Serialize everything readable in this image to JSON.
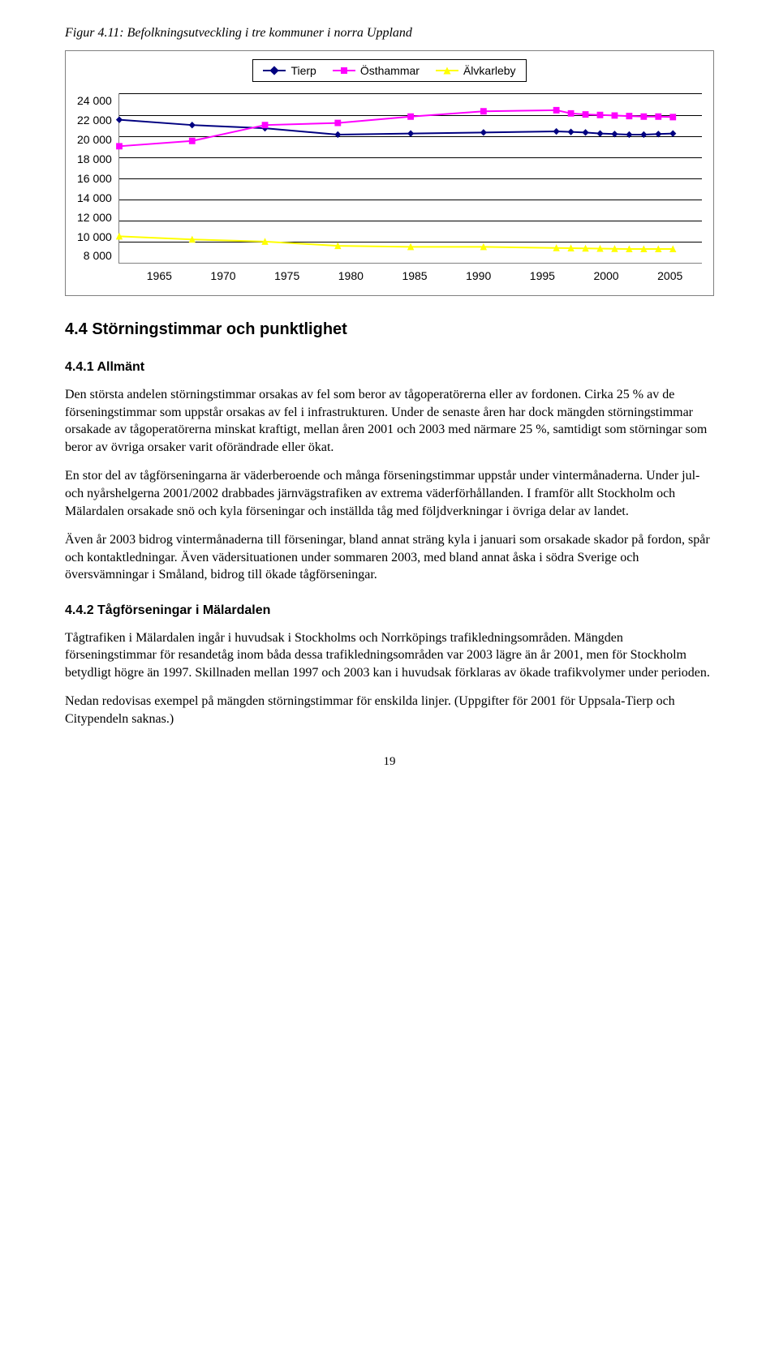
{
  "figure": {
    "caption": "Figur 4.11: Befolkningsutveckling i tre kommuner i norra Uppland",
    "chart": {
      "type": "line",
      "aspect_w": 740,
      "aspect_h": 210,
      "ylim": [
        8000,
        24000
      ],
      "ytick_step": 2000,
      "xticks": [
        1965,
        1970,
        1975,
        1980,
        1985,
        1990,
        1995,
        2000,
        2005
      ],
      "y_labels": [
        "24 000",
        "22 000",
        "20 000",
        "18 000",
        "16 000",
        "14 000",
        "12 000",
        "10 000",
        "8 000"
      ],
      "x_labels": [
        "1965",
        "1970",
        "1975",
        "1980",
        "1985",
        "1990",
        "1995",
        "2000",
        "2005"
      ],
      "grid_color": "#000000",
      "border_color": "#808080",
      "background_color": "#ffffff",
      "axis_font_family": "Arial",
      "axis_fontsize": 14,
      "legend_fontsize": 14,
      "marker_size": 7,
      "line_width": 2,
      "series": [
        {
          "name": "Tierp",
          "color": "#000080",
          "marker": "diamond",
          "points": [
            {
              "x": 1965,
              "y": 21500
            },
            {
              "x": 1970,
              "y": 21000
            },
            {
              "x": 1975,
              "y": 20700
            },
            {
              "x": 1980,
              "y": 20100
            },
            {
              "x": 1985,
              "y": 20200
            },
            {
              "x": 1990,
              "y": 20300
            },
            {
              "x": 1995,
              "y": 20400
            },
            {
              "x": 1996,
              "y": 20350
            },
            {
              "x": 1997,
              "y": 20300
            },
            {
              "x": 1998,
              "y": 20200
            },
            {
              "x": 1999,
              "y": 20150
            },
            {
              "x": 2000,
              "y": 20100
            },
            {
              "x": 2001,
              "y": 20100
            },
            {
              "x": 2002,
              "y": 20150
            },
            {
              "x": 2003,
              "y": 20200
            }
          ]
        },
        {
          "name": "Östhammar",
          "color": "#ff00ff",
          "marker": "square",
          "points": [
            {
              "x": 1965,
              "y": 19000
            },
            {
              "x": 1970,
              "y": 19500
            },
            {
              "x": 1975,
              "y": 21000
            },
            {
              "x": 1980,
              "y": 21200
            },
            {
              "x": 1985,
              "y": 21800
            },
            {
              "x": 1990,
              "y": 22300
            },
            {
              "x": 1995,
              "y": 22400
            },
            {
              "x": 1996,
              "y": 22100
            },
            {
              "x": 1997,
              "y": 22000
            },
            {
              "x": 1998,
              "y": 21950
            },
            {
              "x": 1999,
              "y": 21900
            },
            {
              "x": 2000,
              "y": 21850
            },
            {
              "x": 2001,
              "y": 21800
            },
            {
              "x": 2002,
              "y": 21800
            },
            {
              "x": 2003,
              "y": 21750
            }
          ]
        },
        {
          "name": "Älvkarleby",
          "color": "#ffff00",
          "marker": "triangle",
          "points": [
            {
              "x": 1965,
              "y": 10500
            },
            {
              "x": 1970,
              "y": 10200
            },
            {
              "x": 1975,
              "y": 10000
            },
            {
              "x": 1980,
              "y": 9600
            },
            {
              "x": 1985,
              "y": 9500
            },
            {
              "x": 1990,
              "y": 9500
            },
            {
              "x": 1995,
              "y": 9400
            },
            {
              "x": 1996,
              "y": 9380
            },
            {
              "x": 1997,
              "y": 9360
            },
            {
              "x": 1998,
              "y": 9340
            },
            {
              "x": 1999,
              "y": 9320
            },
            {
              "x": 2000,
              "y": 9300
            },
            {
              "x": 2001,
              "y": 9300
            },
            {
              "x": 2002,
              "y": 9300
            },
            {
              "x": 2003,
              "y": 9300
            }
          ]
        }
      ]
    }
  },
  "sections": {
    "h2": "4.4 Störningstimmar och punktlighet",
    "h3_1": "4.4.1 Allmänt",
    "p1": "Den största andelen störningstimmar orsakas av fel som beror av tågoperatörerna eller av fordonen. Cirka 25 % av de förseningstimmar som uppstår orsakas av fel i infrastrukturen. Under de senaste åren har dock mängden störningstimmar orsakade av tågoperatörerna minskat kraftigt, mellan åren 2001 och 2003 med närmare 25 %, samtidigt som störningar som beror av övriga orsaker varit oförändrade eller ökat.",
    "p2": "En stor del av tågförseningarna är väderberoende och många förseningstimmar uppstår under vintermånaderna. Under jul- och nyårshelgerna 2001/2002 drabbades järnvägstrafiken av extrema väderförhållanden. I framför allt Stockholm och Mälardalen orsakade snö och kyla förseningar och inställda tåg med följdverkningar i övriga delar av landet.",
    "p3": "Även år 2003 bidrog vintermånaderna till förseningar, bland annat sträng kyla i januari som orsakade skador på fordon, spår och kontaktledningar. Även vädersituationen under sommaren 2003, med bland annat åska i södra Sverige och översvämningar i Småland, bidrog till ökade tågförseningar.",
    "h3_2": "4.4.2 Tågförseningar i Mälardalen",
    "p4": "Tågtrafiken i Mälardalen ingår i huvudsak i Stockholms och Norrköpings trafikledningsområden. Mängden förseningstimmar för resandetåg inom båda dessa trafikledningsområden var 2003 lägre än år 2001, men för Stockholm betydligt högre än 1997. Skillnaden mellan 1997 och 2003 kan i huvudsak förklaras av ökade trafikvolymer under perioden.",
    "p5": "Nedan redovisas exempel på mängden störningstimmar för enskilda linjer. (Uppgifter för 2001 för Uppsala-Tierp och Citypendeln saknas.)"
  },
  "page_number": "19"
}
